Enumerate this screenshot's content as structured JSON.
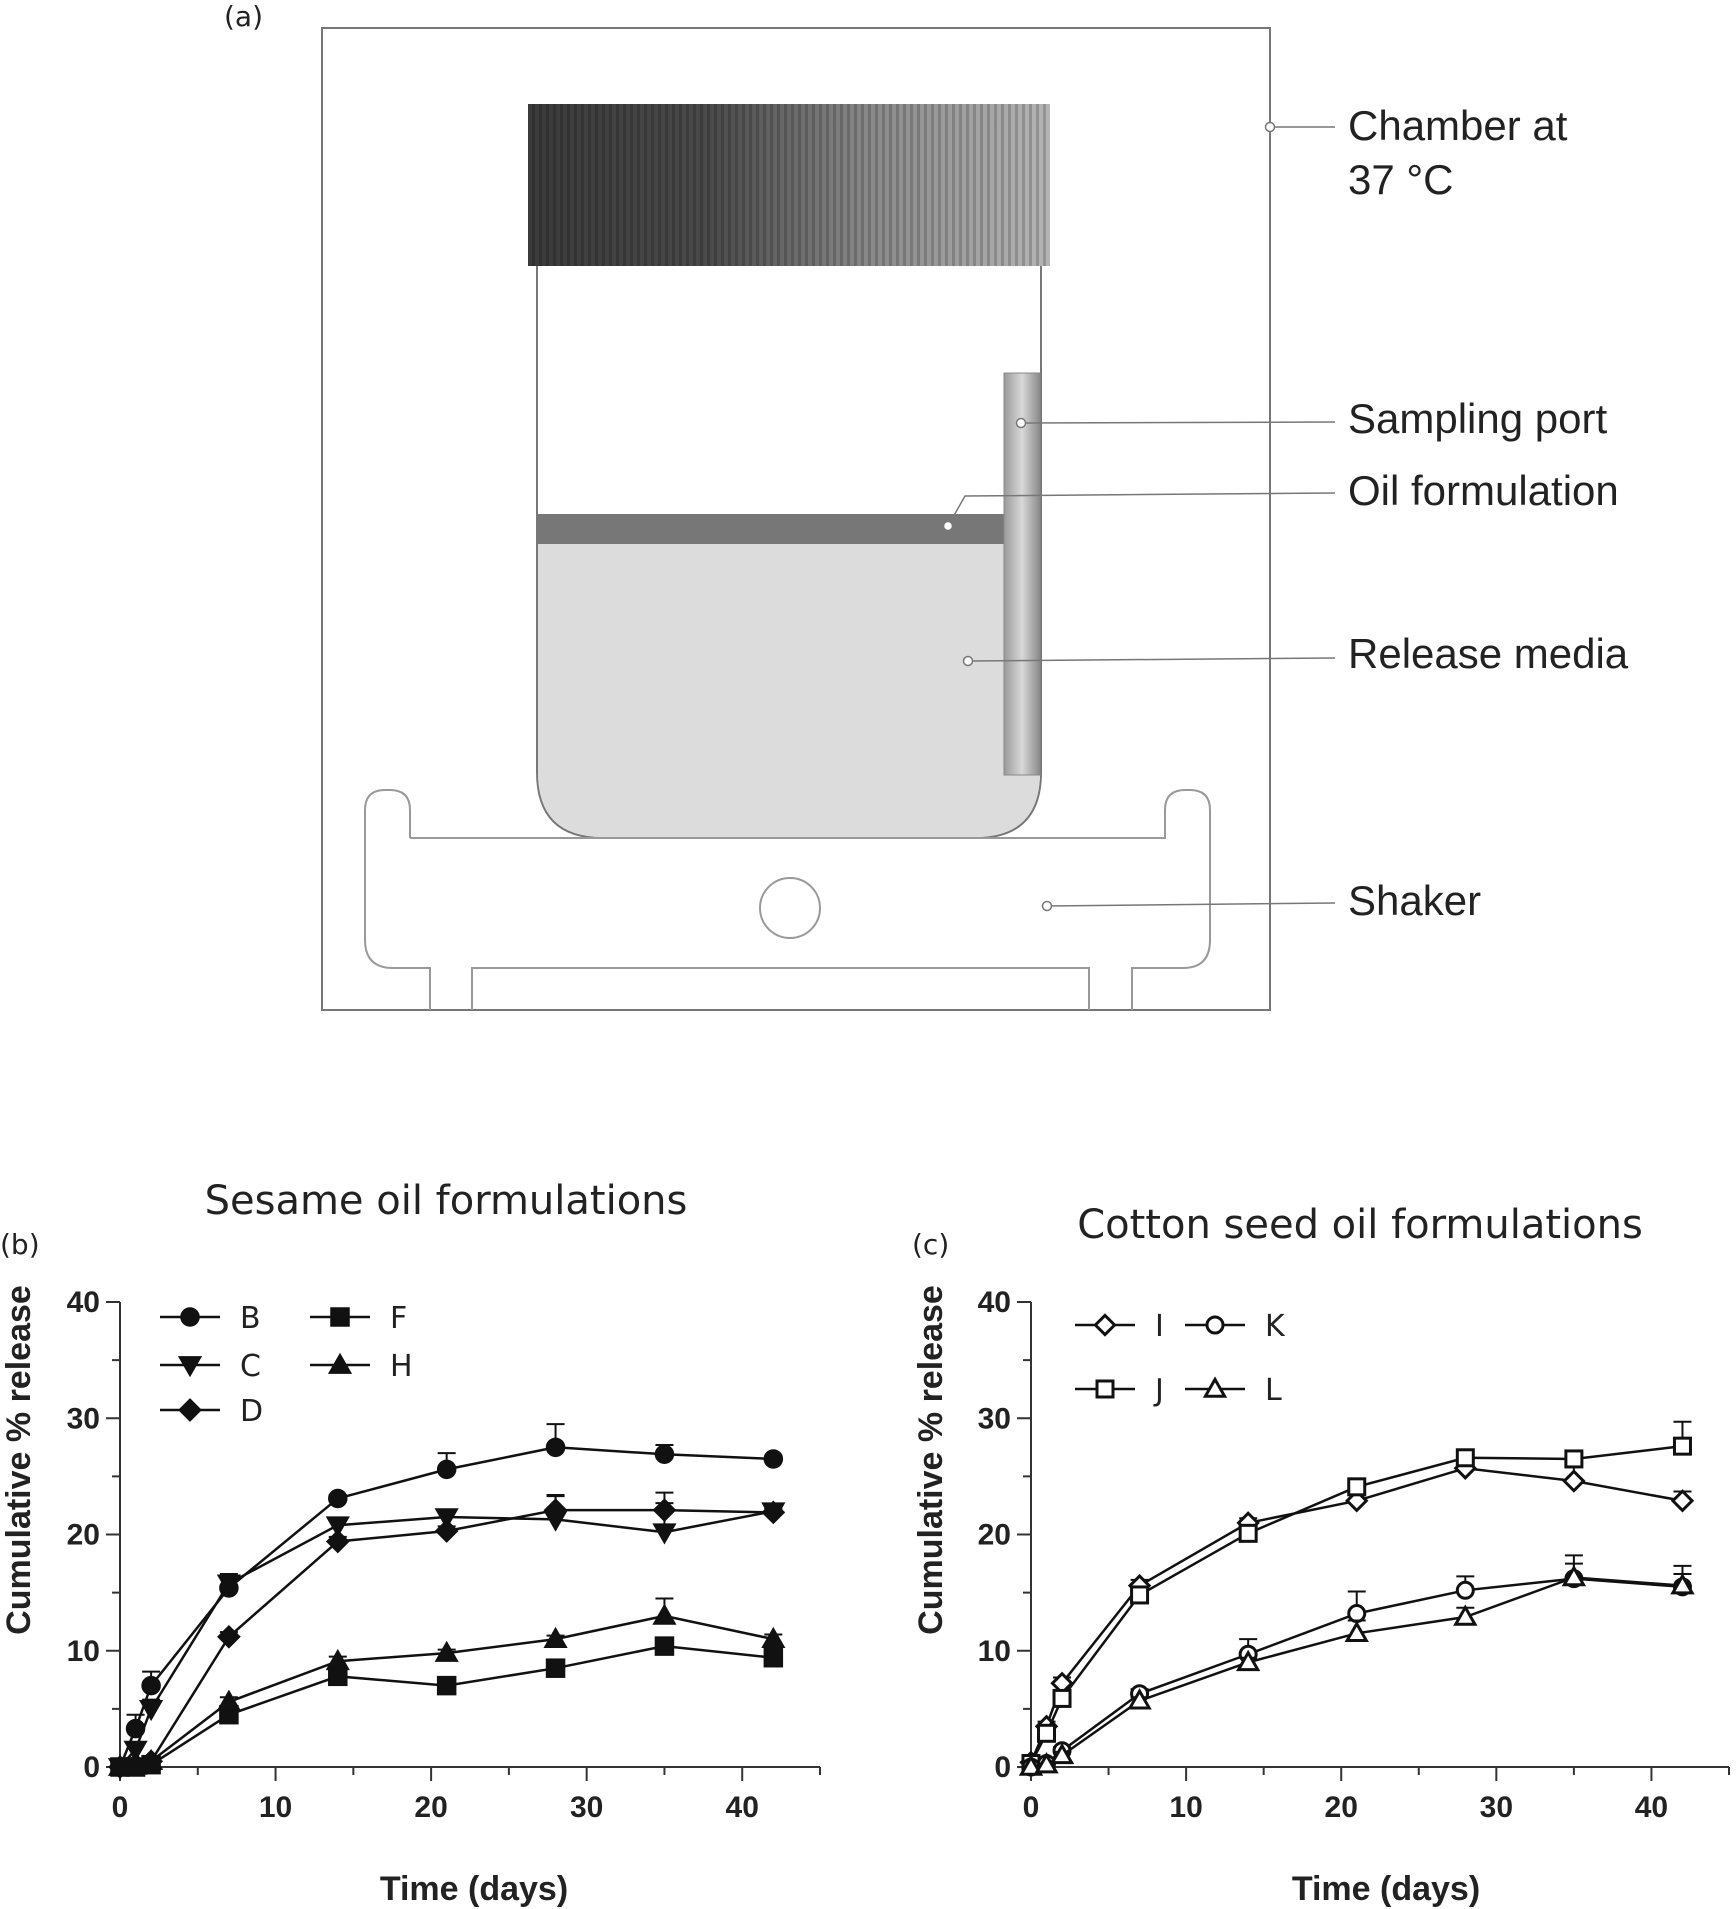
{
  "panel_a": {
    "letter": "(a)",
    "labels": {
      "chamber_line1": "Chamber at",
      "chamber_line2": "37 °C",
      "sampling_port": "Sampling port",
      "oil_formulation": "Oil formulation",
      "release_media": "Release media",
      "shaker": "Shaker"
    }
  },
  "chart_data": [
    {
      "type": "line",
      "panel_letter": "(b)",
      "title": "Sesame oil formulations",
      "xlabel": "Time (days)",
      "ylabel": "Cumulative % release",
      "xlim": [
        0,
        45
      ],
      "ylim": [
        0,
        40
      ],
      "xticks": [
        0,
        10,
        20,
        30,
        40
      ],
      "yticks": [
        0,
        10,
        20,
        30,
        40
      ],
      "legend_position": "top-left",
      "series": [
        {
          "name": "B",
          "marker": "circle",
          "filled": true,
          "x": [
            0,
            1,
            2,
            7,
            14,
            21,
            28,
            35,
            42
          ],
          "y": [
            0,
            3.3,
            7.0,
            15.4,
            23.1,
            25.6,
            27.5,
            26.9,
            26.5
          ],
          "err": [
            0,
            1.2,
            1.2,
            1.0,
            0.3,
            1.4,
            2.0,
            0.8,
            0.3
          ]
        },
        {
          "name": "C",
          "marker": "triangle-down",
          "filled": true,
          "x": [
            0,
            1,
            2,
            7,
            14,
            21,
            28,
            35,
            42
          ],
          "y": [
            0,
            1.5,
            5.0,
            15.8,
            20.8,
            21.5,
            21.3,
            20.2,
            22.0
          ],
          "err": [
            0,
            0.5,
            0.8,
            0.8,
            0.5,
            0.5,
            2.0,
            2.5,
            0.3
          ]
        },
        {
          "name": "D",
          "marker": "diamond",
          "filled": true,
          "x": [
            0,
            1,
            2,
            7,
            14,
            21,
            28,
            35,
            42
          ],
          "y": [
            0,
            0.2,
            0.5,
            11.2,
            19.4,
            20.3,
            22.1,
            22.1,
            21.9
          ],
          "err": [
            0,
            0.2,
            0.3,
            0.4,
            0.4,
            0.4,
            1.3,
            1.5,
            0.3
          ]
        },
        {
          "name": "F",
          "marker": "square",
          "filled": true,
          "x": [
            0,
            1,
            2,
            7,
            14,
            21,
            28,
            35,
            42
          ],
          "y": [
            0,
            0,
            0.2,
            4.5,
            7.8,
            7.0,
            8.5,
            10.4,
            9.4
          ],
          "err": [
            0,
            0,
            0.2,
            0.4,
            0.5,
            0.3,
            0.3,
            0.5,
            0.4
          ]
        },
        {
          "name": "H",
          "marker": "triangle-up",
          "filled": true,
          "x": [
            0,
            1,
            2,
            7,
            14,
            21,
            28,
            35,
            42
          ],
          "y": [
            0,
            0.1,
            0.5,
            5.6,
            9.1,
            9.8,
            11.0,
            13.0,
            11.0
          ],
          "err": [
            0,
            0.1,
            0.2,
            0.4,
            0.4,
            0.3,
            0.3,
            1.5,
            0.4
          ]
        }
      ]
    },
    {
      "type": "line",
      "panel_letter": "(c)",
      "title": "Cotton seed oil formulations",
      "xlabel": "Time (days)",
      "ylabel": "Cumulative % release",
      "xlim": [
        0,
        45
      ],
      "ylim": [
        0,
        40
      ],
      "xticks": [
        0,
        10,
        20,
        30,
        40
      ],
      "yticks": [
        0,
        10,
        20,
        30,
        40
      ],
      "legend_position": "top-left",
      "series": [
        {
          "name": "I",
          "marker": "diamond",
          "filled": false,
          "x": [
            0,
            1,
            2,
            7,
            14,
            21,
            28,
            35,
            42
          ],
          "y": [
            0.4,
            3.5,
            7.2,
            15.6,
            21.0,
            22.9,
            25.7,
            24.6,
            22.9
          ],
          "err": [
            0.2,
            0.4,
            0.5,
            0.5,
            0.4,
            0.5,
            1.5,
            1.8,
            0.8
          ]
        },
        {
          "name": "J",
          "marker": "square",
          "filled": false,
          "x": [
            0,
            1,
            2,
            7,
            14,
            21,
            28,
            35,
            42
          ],
          "y": [
            0.3,
            2.9,
            5.9,
            14.8,
            20.1,
            24.1,
            26.6,
            26.5,
            27.6
          ],
          "err": [
            0.2,
            0.4,
            0.5,
            0.5,
            0.4,
            0.5,
            0.6,
            0.6,
            2.1
          ]
        },
        {
          "name": "K",
          "marker": "circle",
          "filled": false,
          "x": [
            0,
            1,
            2,
            7,
            14,
            21,
            28,
            35,
            42
          ],
          "y": [
            0,
            0.3,
            1.4,
            6.3,
            9.7,
            13.2,
            15.2,
            16.2,
            15.5
          ],
          "err": [
            0,
            0.2,
            0.3,
            0.4,
            1.3,
            1.9,
            1.2,
            2.0,
            1.8
          ]
        },
        {
          "name": "L",
          "marker": "triangle-up",
          "filled": false,
          "x": [
            0,
            1,
            2,
            7,
            14,
            21,
            28,
            35,
            42
          ],
          "y": [
            0,
            0.2,
            1.0,
            5.7,
            9.0,
            11.5,
            12.9,
            16.3,
            15.6
          ],
          "err": [
            0,
            0.1,
            0.3,
            0.3,
            0.4,
            1.1,
            0.8,
            1.2,
            1.0
          ]
        }
      ]
    }
  ]
}
